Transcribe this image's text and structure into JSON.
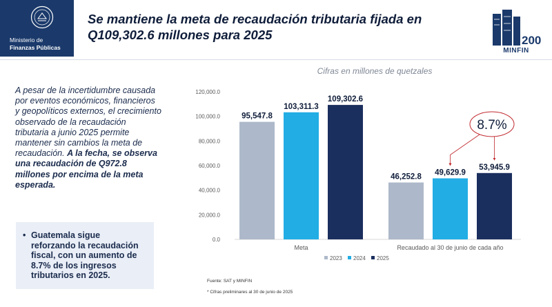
{
  "logo": {
    "line1": "Ministerio de",
    "line2": "Finanzas Públicas"
  },
  "headline": "Se mantiene la meta de recaudación tributaria fijada en Q109,302.6 millones para 2025",
  "anniversary": {
    "number": "200",
    "label": "MINFIN"
  },
  "left_text": {
    "normal": "A pesar de la incertidumbre causada por eventos económicos, financieros y geopolíticos externos, el crecimiento observado de la recaudación tributaria a junio 2025 permite mantener sin cambios la meta de recaudación.",
    "bold": "A la fecha, se observa una recaudación de Q972.8 millones por encima de la meta esperada."
  },
  "callout": {
    "bullet": "•",
    "text": "Guatemala sigue reforzando la recaudación fiscal, con un aumento de 8.7% de los ingresos tributarios en 2025."
  },
  "footer": {
    "fuente": "Fuente: SAT y MINFIN",
    "nota": "* Cifras preliminares al 30 de junio de 2025"
  },
  "colors": {
    "2023": "#adb9ca",
    "2024": "#22ade4",
    "2025": "#1b2f5e",
    "arrow": "#c0272d"
  },
  "chart_data": {
    "type": "bar",
    "subtitle": "Cifras en millones de quetzales",
    "categories": [
      "Meta",
      "Recaudado al 30 de junio de cada año"
    ],
    "series": [
      {
        "name": "2023",
        "values": [
          95547.8,
          46252.8
        ],
        "labels": [
          "95,547.8",
          "46,252.8"
        ]
      },
      {
        "name": "2024",
        "values": [
          103311.3,
          49629.9
        ],
        "labels": [
          "103,311.3",
          "49,629.9"
        ]
      },
      {
        "name": "2025",
        "values": [
          109302.6,
          53945.9
        ],
        "labels": [
          "109,302.6",
          "53,945.9"
        ]
      }
    ],
    "ylim": [
      0,
      120000
    ],
    "yticks": [
      0,
      20000,
      40000,
      60000,
      80000,
      100000,
      120000
    ],
    "ytick_labels": [
      "0.0",
      "20,000.0",
      "40,000.0",
      "60,000.0",
      "80,000.0",
      "100,000.0",
      "120,000.0"
    ],
    "annotation": "8.7%",
    "legend_position": "bottom",
    "grid": false
  }
}
